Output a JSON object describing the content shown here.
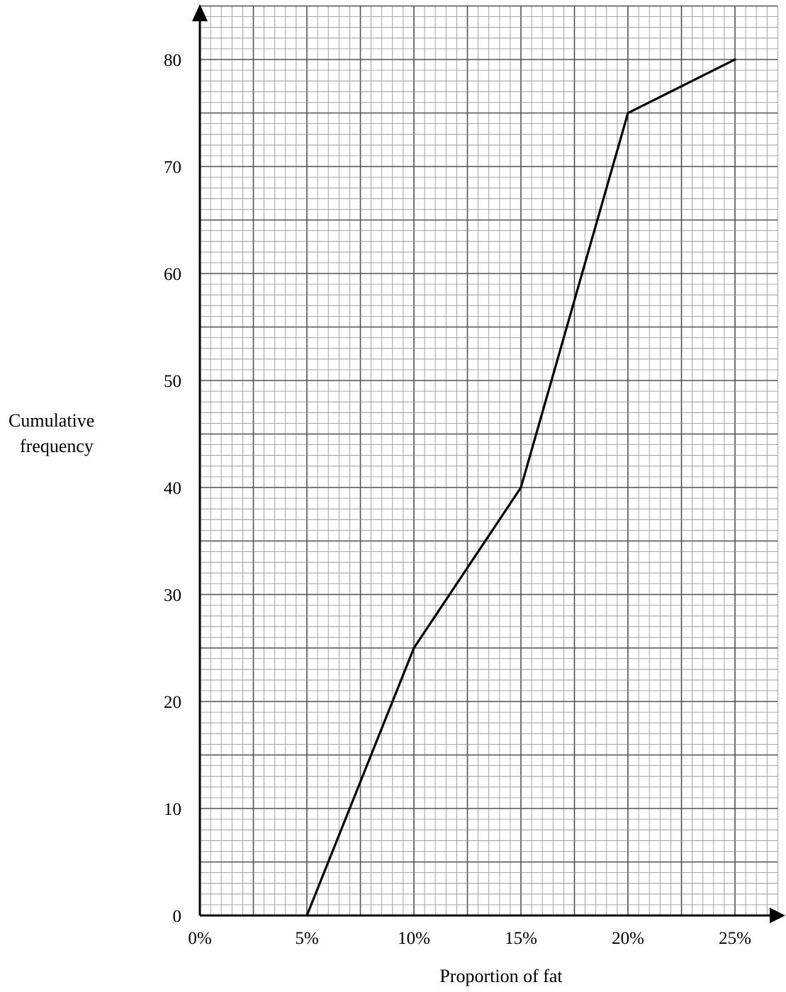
{
  "chart_data": {
    "type": "line",
    "title": "",
    "xlabel": "Proportion of fat",
    "ylabel_lines": [
      "Cumulative",
      "frequency"
    ],
    "x_ticks": [
      0,
      5,
      10,
      15,
      20,
      25
    ],
    "x_tick_labels": [
      "0%",
      "5%",
      "10%",
      "15%",
      "20%",
      "25%"
    ],
    "y_ticks": [
      0,
      10,
      20,
      30,
      40,
      50,
      60,
      70,
      80
    ],
    "y_tick_labels": [
      "0",
      "10",
      "20",
      "30",
      "40",
      "50",
      "60",
      "70",
      "80"
    ],
    "xlim": [
      0,
      27
    ],
    "ylim": [
      0,
      85
    ],
    "grid": true,
    "series": [
      {
        "x": [
          5,
          10,
          15,
          20,
          25
        ],
        "y": [
          0,
          25,
          40,
          75,
          80
        ]
      }
    ],
    "colors": {
      "line": "#000000",
      "axis": "#000000",
      "grid_minor": "#8c8c8c",
      "grid_major": "#505050"
    }
  }
}
